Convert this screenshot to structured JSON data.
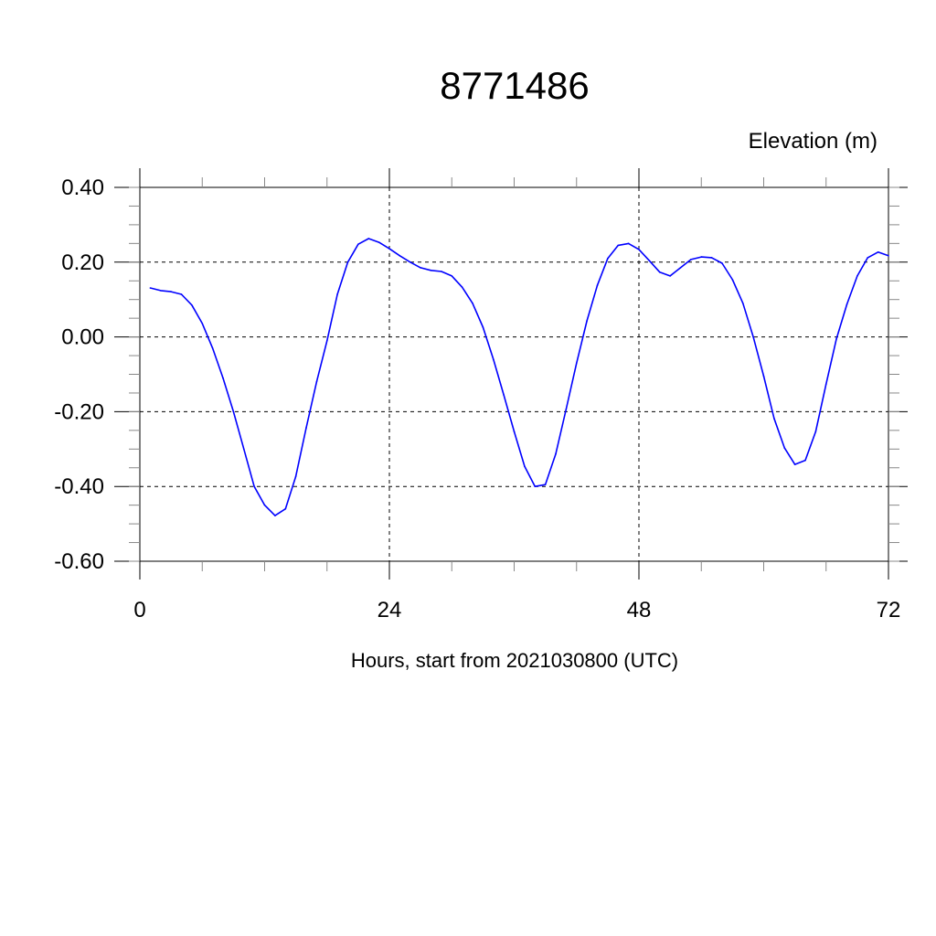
{
  "chart_data": {
    "type": "line",
    "title": "8771486",
    "ylabel": "Elevation (m)",
    "xlabel": "Hours, start from 2021030800 (UTC)",
    "xlim": [
      0,
      72
    ],
    "ylim": [
      -0.6,
      0.4
    ],
    "x_ticks": [
      0,
      24,
      48,
      72
    ],
    "x_tick_labels": [
      "0",
      "24",
      "48",
      "72"
    ],
    "y_ticks": [
      0.4,
      0.2,
      0.0,
      -0.2,
      -0.4,
      -0.6
    ],
    "y_tick_labels": [
      "0.40",
      "0.20",
      "0.00",
      "-0.20",
      "-0.40",
      "-0.60"
    ],
    "grid": true,
    "series": [
      {
        "color": "#0000ff",
        "x": [
          1,
          2,
          3,
          4,
          5,
          6,
          7,
          8,
          9,
          10,
          11,
          12,
          13,
          14,
          15,
          16,
          17,
          18,
          19,
          20,
          21,
          22,
          23,
          24,
          25,
          26,
          27,
          28,
          29,
          30,
          31,
          32,
          33,
          34,
          35,
          36,
          37,
          38,
          39,
          40,
          41,
          42,
          43,
          44,
          45,
          46,
          47,
          48,
          49,
          50,
          51,
          52,
          53,
          54,
          55,
          56,
          57,
          58,
          59,
          60,
          61,
          62,
          63,
          64,
          65,
          66,
          67,
          68,
          69,
          70,
          71,
          72
        ],
        "values": [
          0.131,
          0.124,
          0.121,
          0.114,
          0.085,
          0.036,
          -0.03,
          -0.11,
          -0.2,
          -0.3,
          -0.4,
          -0.45,
          -0.478,
          -0.46,
          -0.373,
          -0.243,
          -0.12,
          -0.01,
          0.114,
          0.2,
          0.248,
          0.263,
          0.253,
          0.236,
          0.217,
          0.2,
          0.185,
          0.178,
          0.175,
          0.163,
          0.133,
          0.09,
          0.026,
          -0.06,
          -0.155,
          -0.253,
          -0.346,
          -0.4,
          -0.395,
          -0.313,
          -0.193,
          -0.07,
          0.043,
          0.138,
          0.21,
          0.245,
          0.25,
          0.234,
          0.204,
          0.173,
          0.163,
          0.185,
          0.207,
          0.214,
          0.212,
          0.197,
          0.153,
          0.09,
          0.0,
          -0.105,
          -0.218,
          -0.297,
          -0.341,
          -0.33,
          -0.253,
          -0.126,
          -0.005,
          0.087,
          0.163,
          0.212,
          0.227,
          0.217
        ]
      }
    ]
  }
}
